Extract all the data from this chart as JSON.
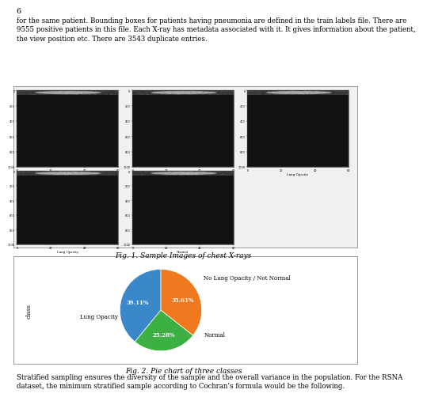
{
  "page_number": "6",
  "paragraph1": "for the same patient. Bounding boxes for patients having pneumonia are defined in the train labels file. There are\n9555 positive patients in this file. Each X-ray has metadata associated with it. It gives information about the patient,\nthe view position etc. There are 3543 duplicate entries.",
  "xray_caption": "Fig. 1. Sample Images of chest X-rays",
  "pie_caption": "Fig. 2. Pie chart of three classes",
  "paragraph2": "Stratified sampling ensures the diversity of the sample and the overall variance in the population. For the RSNA\ndataset, the minimum stratified sample according to Cochran’s formula would be the following.",
  "pie_labels": [
    "No Lung Opacity / Not Normal",
    "Normal",
    "Lung Opacity"
  ],
  "pie_values": [
    39.11,
    25.28,
    35.61
  ],
  "pie_colors": [
    "#3a88c9",
    "#3cb043",
    "#f07920"
  ],
  "ylabel_text": "class",
  "background_color": "#ffffff",
  "box_border_color": "#aaaaaa",
  "font_size_body": 6.2,
  "font_size_caption": 6.5,
  "font_size_page": 7
}
